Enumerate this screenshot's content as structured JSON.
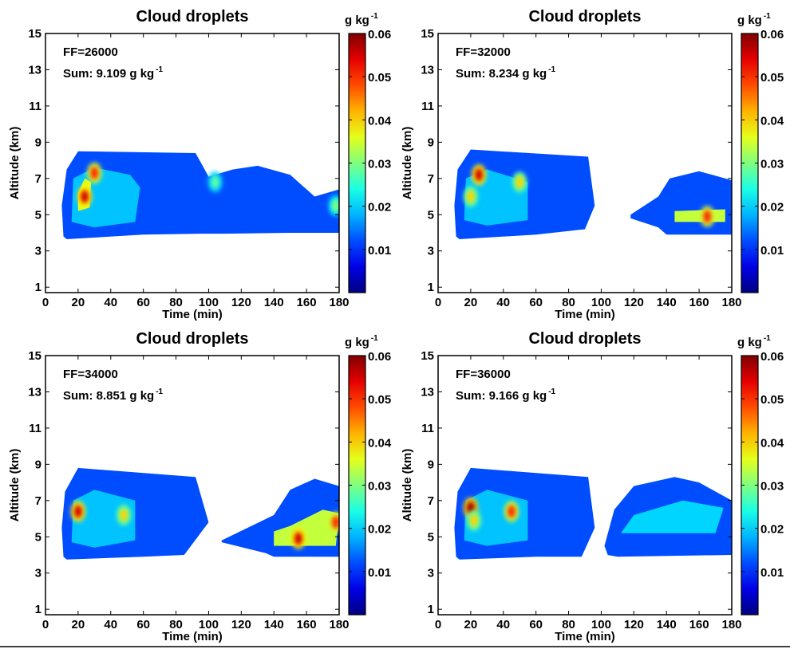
{
  "chart_data": [
    {
      "type": "heatmap",
      "title": "Cloud droplets",
      "xlabel": "Time (min)",
      "ylabel": "Altitude (km)",
      "xlim": [
        0,
        180
      ],
      "ylim": [
        0.7,
        15
      ],
      "x_ticks": [
        "0",
        "20",
        "40",
        "60",
        "80",
        "100",
        "120",
        "140",
        "160",
        "180"
      ],
      "y_ticks": [
        "1",
        "3",
        "5",
        "7",
        "9",
        "11",
        "13",
        "15"
      ],
      "annotations": [
        "FF=26000",
        "Sum: 9.109 g kg"
      ],
      "colorbar": {
        "label": "g kg",
        "range": [
          0,
          0.06
        ],
        "ticks": [
          "0.01",
          "0.02",
          "0.03",
          "0.04",
          "0.05",
          "0.06"
        ]
      },
      "regions": [
        {
          "points": [
            [
              11,
              3.8
            ],
            [
              13,
              3.65
            ],
            [
              60,
              3.9
            ],
            [
              95,
              3.95
            ],
            [
              110,
              3.95
            ],
            [
              150,
              4.0
            ],
            [
              180,
              4.0
            ],
            [
              180,
              6.4
            ],
            [
              165,
              6.0
            ],
            [
              150,
              7.2
            ],
            [
              130,
              7.7
            ],
            [
              115,
              7.5
            ],
            [
              100,
              7.1
            ],
            [
              92,
              8.4
            ],
            [
              20,
              8.5
            ],
            [
              13,
              7.5
            ],
            [
              10,
              5.5
            ]
          ],
          "value": 0.012
        },
        {
          "points": [
            [
              16,
              4.6
            ],
            [
              30,
              4.3
            ],
            [
              55,
              4.6
            ],
            [
              58,
              6.5
            ],
            [
              52,
              7.2
            ],
            [
              30,
              7.6
            ],
            [
              17,
              7.0
            ]
          ],
          "value": 0.019
        },
        {
          "points": [
            [
              20,
              5.2
            ],
            [
              27,
              5.4
            ],
            [
              28,
              6.8
            ],
            [
              24,
              7.0
            ],
            [
              20,
              6.2
            ]
          ],
          "value": 0.036
        }
      ],
      "peaks": [
        {
          "x": 24,
          "y": 6.0,
          "value": 0.055
        },
        {
          "x": 30,
          "y": 7.3,
          "value": 0.05
        },
        {
          "x": 104,
          "y": 6.8,
          "value": 0.028
        },
        {
          "x": 178,
          "y": 5.5,
          "value": 0.03
        }
      ]
    },
    {
      "type": "heatmap",
      "title": "Cloud droplets",
      "xlabel": "Time (min)",
      "ylabel": "Altitude (km)",
      "xlim": [
        0,
        180
      ],
      "ylim": [
        0.7,
        15
      ],
      "x_ticks": [
        "0",
        "20",
        "40",
        "60",
        "80",
        "100",
        "120",
        "140",
        "160",
        "180"
      ],
      "y_ticks": [
        "1",
        "3",
        "5",
        "7",
        "9",
        "11",
        "13",
        "15"
      ],
      "annotations": [
        "FF=32000",
        "Sum: 8.234 g kg"
      ],
      "colorbar": {
        "label": "g kg",
        "range": [
          0,
          0.06
        ],
        "ticks": [
          "0.01",
          "0.02",
          "0.03",
          "0.04",
          "0.05",
          "0.06"
        ]
      },
      "regions": [
        {
          "points": [
            [
              11,
              3.8
            ],
            [
              13,
              3.65
            ],
            [
              60,
              3.9
            ],
            [
              90,
              4.2
            ],
            [
              96,
              5.5
            ],
            [
              92,
              8.2
            ],
            [
              20,
              8.6
            ],
            [
              12,
              7.5
            ],
            [
              10,
              5.5
            ]
          ],
          "value": 0.012
        },
        {
          "points": [
            [
              118,
              4.8
            ],
            [
              135,
              4.3
            ],
            [
              140,
              3.9
            ],
            [
              180,
              3.9
            ],
            [
              180,
              6.9
            ],
            [
              160,
              7.4
            ],
            [
              142,
              7.0
            ],
            [
              135,
              6.0
            ],
            [
              118,
              5.0
            ]
          ],
          "value": 0.012
        },
        {
          "points": [
            [
              16,
              4.7
            ],
            [
              30,
              4.4
            ],
            [
              55,
              4.7
            ],
            [
              55,
              6.8
            ],
            [
              30,
              7.5
            ],
            [
              17,
              7.0
            ]
          ],
          "value": 0.019
        },
        {
          "points": [
            [
              145,
              4.6
            ],
            [
              176,
              4.6
            ],
            [
              176,
              5.3
            ],
            [
              145,
              5.2
            ]
          ],
          "value": 0.034
        }
      ],
      "peaks": [
        {
          "x": 25,
          "y": 7.2,
          "value": 0.055
        },
        {
          "x": 20,
          "y": 6.0,
          "value": 0.04
        },
        {
          "x": 165,
          "y": 4.9,
          "value": 0.05
        },
        {
          "x": 50,
          "y": 6.8,
          "value": 0.04
        }
      ]
    },
    {
      "type": "heatmap",
      "title": "Cloud droplets",
      "xlabel": "Time (min)",
      "ylabel": "Altitude (km)",
      "xlim": [
        0,
        180
      ],
      "ylim": [
        0.7,
        15
      ],
      "x_ticks": [
        "0",
        "20",
        "40",
        "60",
        "80",
        "100",
        "120",
        "140",
        "160",
        "180"
      ],
      "y_ticks": [
        "1",
        "3",
        "5",
        "7",
        "9",
        "11",
        "13",
        "15"
      ],
      "annotations": [
        "FF=34000",
        "Sum: 8.851 g kg"
      ],
      "colorbar": {
        "label": "g kg",
        "range": [
          0,
          0.06
        ],
        "ticks": [
          "0.01",
          "0.02",
          "0.03",
          "0.04",
          "0.05",
          "0.06"
        ]
      },
      "regions": [
        {
          "points": [
            [
              11,
              3.9
            ],
            [
              13,
              3.75
            ],
            [
              60,
              3.9
            ],
            [
              85,
              4.0
            ],
            [
              100,
              5.8
            ],
            [
              92,
              8.3
            ],
            [
              20,
              8.8
            ],
            [
              12,
              7.5
            ],
            [
              10,
              5.5
            ]
          ],
          "value": 0.012
        },
        {
          "points": [
            [
              108,
              4.7
            ],
            [
              135,
              4.1
            ],
            [
              140,
              3.9
            ],
            [
              180,
              3.9
            ],
            [
              180,
              7.8
            ],
            [
              165,
              8.2
            ],
            [
              150,
              7.6
            ],
            [
              140,
              6.2
            ],
            [
              108,
              4.8
            ]
          ],
          "value": 0.012
        },
        {
          "points": [
            [
              16,
              4.7
            ],
            [
              30,
              4.4
            ],
            [
              55,
              4.8
            ],
            [
              55,
              7.0
            ],
            [
              30,
              7.6
            ],
            [
              17,
              7.0
            ]
          ],
          "value": 0.019
        },
        {
          "points": [
            [
              140,
              4.5
            ],
            [
              178,
              4.5
            ],
            [
              180,
              6.3
            ],
            [
              170,
              6.5
            ],
            [
              150,
              5.6
            ],
            [
              140,
              5.3
            ]
          ],
          "value": 0.034
        }
      ],
      "peaks": [
        {
          "x": 20,
          "y": 6.4,
          "value": 0.055
        },
        {
          "x": 155,
          "y": 4.9,
          "value": 0.055
        },
        {
          "x": 178,
          "y": 5.8,
          "value": 0.05
        },
        {
          "x": 48,
          "y": 6.2,
          "value": 0.04
        }
      ]
    },
    {
      "type": "heatmap",
      "title": "Cloud droplets",
      "xlabel": "Time (min)",
      "ylabel": "Altitude (km)",
      "xlim": [
        0,
        180
      ],
      "ylim": [
        0.7,
        15
      ],
      "x_ticks": [
        "0",
        "20",
        "40",
        "60",
        "80",
        "100",
        "120",
        "140",
        "160",
        "180"
      ],
      "y_ticks": [
        "1",
        "3",
        "5",
        "7",
        "9",
        "11",
        "13",
        "15"
      ],
      "annotations": [
        "FF=36000",
        "Sum: 9.166 g kg"
      ],
      "colorbar": {
        "label": "g kg",
        "range": [
          0,
          0.06
        ],
        "ticks": [
          "0.01",
          "0.02",
          "0.03",
          "0.04",
          "0.05",
          "0.06"
        ]
      },
      "regions": [
        {
          "points": [
            [
              11,
              3.9
            ],
            [
              13,
              3.75
            ],
            [
              60,
              3.9
            ],
            [
              88,
              3.9
            ],
            [
              96,
              5.5
            ],
            [
              92,
              8.3
            ],
            [
              20,
              8.8
            ],
            [
              12,
              7.5
            ],
            [
              10,
              5.5
            ]
          ],
          "value": 0.012
        },
        {
          "points": [
            [
              104,
              4.0
            ],
            [
              110,
              3.9
            ],
            [
              180,
              4.0
            ],
            [
              180,
              7.0
            ],
            [
              160,
              8.0
            ],
            [
              145,
              8.3
            ],
            [
              120,
              7.8
            ],
            [
              108,
              6.5
            ],
            [
              102,
              4.5
            ]
          ],
          "value": 0.012
        },
        {
          "points": [
            [
              16,
              4.8
            ],
            [
              30,
              4.5
            ],
            [
              55,
              4.8
            ],
            [
              55,
              7.0
            ],
            [
              30,
              7.6
            ],
            [
              17,
              7.0
            ]
          ],
          "value": 0.019
        },
        {
          "points": [
            [
              112,
              5.2
            ],
            [
              170,
              5.2
            ],
            [
              175,
              6.6
            ],
            [
              150,
              7.0
            ],
            [
              120,
              6.2
            ]
          ],
          "value": 0.02
        }
      ],
      "peaks": [
        {
          "x": 20,
          "y": 6.6,
          "value": 0.058
        },
        {
          "x": 45,
          "y": 6.4,
          "value": 0.05
        },
        {
          "x": 22,
          "y": 5.9,
          "value": 0.04
        }
      ]
    }
  ]
}
